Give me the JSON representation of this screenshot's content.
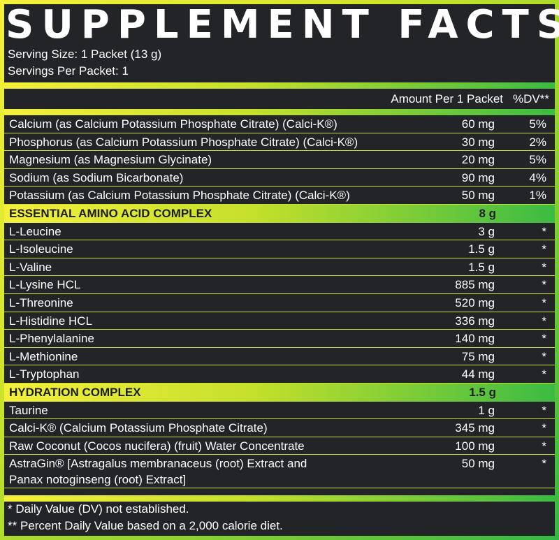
{
  "title": "SUPPLEMENT FACTS",
  "serving_size": "Serving Size: 1 Packet (13 g)",
  "servings_per": "Servings Per Packet: 1",
  "header": {
    "amount": "Amount Per 1 Packet",
    "dv": "%DV**"
  },
  "minerals": [
    {
      "name": "Calcium (as Calcium Potassium Phosphate Citrate) (Calci-K®)",
      "amount": "60 mg",
      "dv": "5%"
    },
    {
      "name": "Phosphorus (as Calcium Potassium Phosphate Citrate) (Calci-K®)",
      "amount": "30 mg",
      "dv": "2%"
    },
    {
      "name": "Magnesium (as Magnesium Glycinate)",
      "amount": "20 mg",
      "dv": "5%"
    },
    {
      "name": "Sodium (as Sodium Bicarbonate)",
      "amount": "90 mg",
      "dv": "4%"
    },
    {
      "name": "Potassium (as Calcium Potassium Phosphate Citrate) (Calci-K®)",
      "amount": "50 mg",
      "dv": "1%"
    }
  ],
  "eaa": {
    "label": "ESSENTIAL AMINO ACID COMPLEX",
    "amount": "8 g",
    "items": [
      {
        "name": "L-Leucine",
        "amount": "3 g",
        "dv": "*"
      },
      {
        "name": "L-Isoleucine",
        "amount": "1.5 g",
        "dv": "*"
      },
      {
        "name": "L-Valine",
        "amount": "1.5 g",
        "dv": "*"
      },
      {
        "name": "L-Lysine HCL",
        "amount": "885 mg",
        "dv": "*"
      },
      {
        "name": "L-Threonine",
        "amount": "520 mg",
        "dv": "*"
      },
      {
        "name": "L-Histidine HCL",
        "amount": "336 mg",
        "dv": "*"
      },
      {
        "name": "L-Phenylalanine",
        "amount": "140 mg",
        "dv": "*"
      },
      {
        "name": "L-Methionine",
        "amount": "75 mg",
        "dv": "*"
      },
      {
        "name": "L-Tryptophan",
        "amount": "44 mg",
        "dv": "*"
      }
    ]
  },
  "hydration": {
    "label": "HYDRATION COMPLEX",
    "amount": "1.5 g",
    "items": [
      {
        "name": "Taurine",
        "amount": "1 g",
        "dv": "*"
      },
      {
        "name": "Calci-K® (Calcium Potassium Phosphate Citrate)",
        "amount": "345 mg",
        "dv": "*"
      },
      {
        "name": "Raw Coconut (Cocos nucifera) (fruit) Water Concentrate",
        "amount": "100 mg",
        "dv": "*"
      },
      {
        "name": "AstraGin® [Astragalus membranaceus (root) Extract and",
        "name_line2": "Panax notoginseng (root) Extract]",
        "amount": "50 mg",
        "dv": "*"
      }
    ]
  },
  "footnotes": [
    "* Daily Value (DV) not established.",
    "** Percent Daily Value based on a 2,000 calorie diet."
  ],
  "colors": {
    "panel": "#222428",
    "accent_yellow": "#f4f03a",
    "accent_green": "#3bbb43",
    "text": "#ffffff"
  }
}
